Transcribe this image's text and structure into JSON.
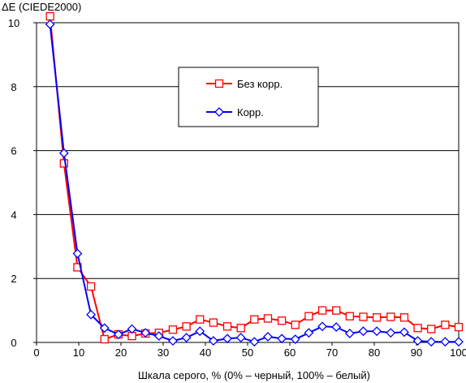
{
  "chart_data": {
    "type": "line",
    "title": "",
    "ylabel": "ΔE (CIEDE2000)",
    "xlabel": "Шкала серого, % (0% – черный, 100% – белый)",
    "xlim": [
      0,
      100
    ],
    "ylim": [
      0,
      10
    ],
    "xticks": [
      0,
      10,
      20,
      30,
      40,
      50,
      60,
      70,
      80,
      90,
      100
    ],
    "yticks": [
      0,
      2,
      4,
      6,
      8,
      10
    ],
    "grid": "horizontal",
    "legend_position": "center-right",
    "series": [
      {
        "name": "Без корр.",
        "color": "#ff0000",
        "marker": "square",
        "x": [
          3.2,
          6.5,
          9.7,
          12.9,
          16.1,
          19.4,
          22.6,
          25.8,
          29.0,
          32.3,
          35.5,
          38.7,
          41.9,
          45.2,
          48.4,
          51.6,
          54.8,
          58.1,
          61.3,
          64.5,
          67.7,
          71.0,
          74.2,
          77.4,
          80.6,
          83.9,
          87.1,
          90.3,
          93.5,
          96.8,
          100.0
        ],
        "y": [
          10.2,
          5.6,
          2.35,
          1.75,
          0.1,
          0.25,
          0.2,
          0.28,
          0.3,
          0.4,
          0.5,
          0.72,
          0.62,
          0.5,
          0.45,
          0.72,
          0.75,
          0.68,
          0.55,
          0.82,
          1.0,
          1.0,
          0.82,
          0.8,
          0.78,
          0.8,
          0.78,
          0.45,
          0.42,
          0.55,
          0.48
        ]
      },
      {
        "name": "Корр.",
        "color": "#0000ff",
        "marker": "diamond",
        "x": [
          3.2,
          6.5,
          9.7,
          12.9,
          16.1,
          19.4,
          22.6,
          25.8,
          29.0,
          32.3,
          35.5,
          38.7,
          41.9,
          45.2,
          48.4,
          51.6,
          54.8,
          58.1,
          61.3,
          64.5,
          67.7,
          71.0,
          74.2,
          77.4,
          80.6,
          83.9,
          87.1,
          90.3,
          93.5,
          96.8,
          100.0
        ],
        "y": [
          9.95,
          5.92,
          2.78,
          0.87,
          0.45,
          0.25,
          0.42,
          0.3,
          0.2,
          0.05,
          0.15,
          0.35,
          0.05,
          0.12,
          0.15,
          0.02,
          0.18,
          0.12,
          0.1,
          0.3,
          0.5,
          0.48,
          0.28,
          0.35,
          0.35,
          0.3,
          0.32,
          0.05,
          0.02,
          0.02,
          0.02
        ]
      }
    ]
  }
}
